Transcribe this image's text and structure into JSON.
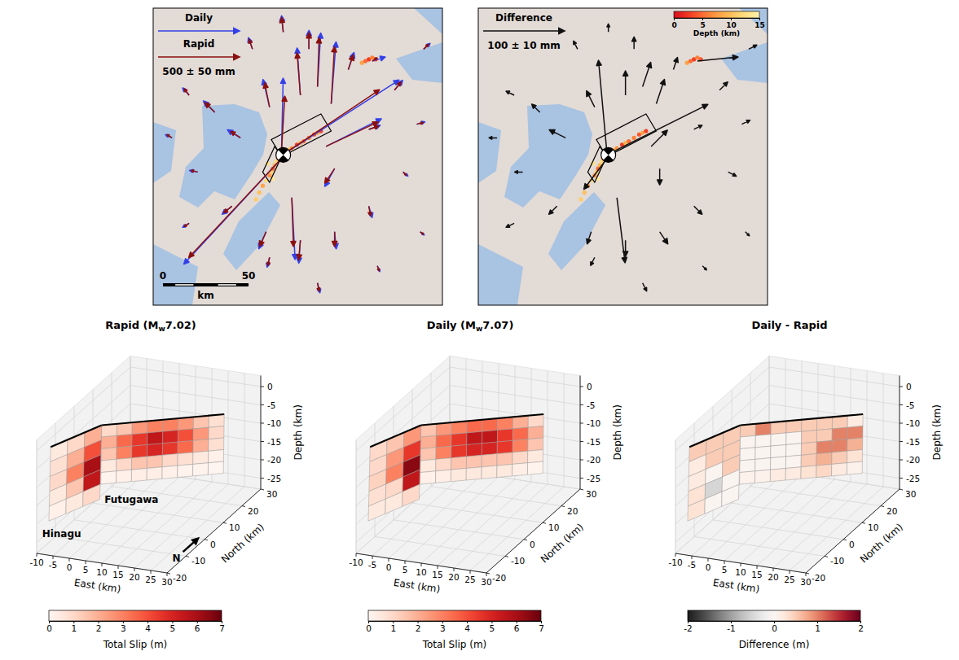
{
  "chart_data": [
    {
      "type": "vector_map",
      "xlim": [
        -76,
        93
      ],
      "ylim": [
        -88,
        86
      ],
      "stations": {
        "x": [
          1,
          0,
          -1,
          5,
          28,
          20,
          10,
          -8,
          25,
          30,
          -25,
          -40,
          -55,
          -18,
          0,
          15,
          38,
          65,
          50,
          78,
          70,
          50,
          30,
          10,
          -10,
          -30,
          -50,
          -65,
          -55,
          -8,
          20,
          55,
          80,
          82,
          52
        ],
        "y": [
          1,
          -1,
          3,
          -25,
          30,
          40,
          35,
          28,
          5,
          -8,
          10,
          25,
          35,
          62,
          72,
          62,
          50,
          38,
          15,
          18,
          -10,
          -30,
          -45,
          -50,
          -45,
          -30,
          -10,
          10,
          -40,
          -60,
          -75,
          -65,
          -45,
          62,
          55
        ]
      },
      "series": [
        {
          "name": "Daily",
          "color": "#3340e8",
          "east": [
            700,
            -610,
            10,
            20,
            30,
            20,
            -20,
            -40,
            340,
            -60,
            -80,
            -70,
            -40,
            -25,
            -10,
            0,
            35,
            50,
            70,
            50,
            30,
            20,
            10,
            -10,
            -45,
            -60,
            -50,
            -40,
            -40,
            -15,
            15,
            15,
            25,
            40,
            80
          ],
          "north": [
            450,
            -660,
            440,
            -380,
            380,
            330,
            290,
            170,
            170,
            -110,
            50,
            70,
            45,
            70,
            100,
            115,
            105,
            60,
            25,
            15,
            -25,
            -70,
            -105,
            -140,
            -105,
            -50,
            10,
            20,
            -25,
            -60,
            -60,
            -35,
            -20,
            35,
            25
          ]
        },
        {
          "name": "Rapid",
          "color": "#8b1010",
          "east": [
            580,
            -580,
            20,
            10,
            20,
            10,
            -20,
            -30,
            320,
            -60,
            -60,
            -60,
            -30,
            -20,
            -10,
            0,
            30,
            40,
            60,
            40,
            20,
            10,
            0,
            -10,
            -40,
            -50,
            -40,
            -30,
            -30,
            -10,
            10,
            10,
            20,
            30,
            30
          ],
          "north": [
            390,
            -620,
            330,
            -300,
            350,
            300,
            260,
            150,
            150,
            -90,
            40,
            60,
            40,
            60,
            90,
            100,
            90,
            50,
            20,
            10,
            -20,
            -60,
            -90,
            -120,
            -90,
            -40,
            10,
            20,
            -20,
            -50,
            -50,
            -30,
            -15,
            30,
            20
          ]
        }
      ],
      "reference_arrow": {
        "value": 500,
        "label": "500 ± 50 mm"
      },
      "scale_bar": {
        "ticks": [
          0,
          50
        ],
        "unit": "km"
      },
      "aftershocks": {
        "x": [
          -16,
          -14,
          -12,
          -10,
          -9,
          -8,
          -7,
          -6,
          -6,
          -5,
          -4,
          -3,
          -2,
          -1,
          1,
          3,
          5,
          8,
          10,
          12,
          15,
          18,
          20,
          22,
          46,
          48,
          50,
          52,
          54
        ],
        "y": [
          -26,
          -22,
          -18,
          -15,
          -5,
          -12,
          -10,
          -14,
          -8,
          -6,
          -4,
          -2,
          -1,
          1,
          2,
          3,
          4,
          6,
          7,
          8,
          10,
          12,
          13,
          14,
          54,
          55,
          56,
          57,
          56
        ],
        "depth": [
          11,
          10,
          8,
          12,
          13,
          7,
          11,
          14,
          5,
          9,
          12,
          6,
          10,
          8,
          4,
          10,
          7,
          3,
          9,
          5,
          6,
          4,
          8,
          3,
          8,
          5,
          3,
          6,
          4
        ]
      }
    },
    {
      "type": "vector_map",
      "series": [
        {
          "name": "Difference",
          "color": "#111111",
          "east": [
            120,
            -30,
            -10,
            10,
            10,
            10,
            0,
            -10,
            20,
            0,
            -20,
            -10,
            -10,
            -5,
            0,
            0,
            5,
            10,
            10,
            10,
            10,
            10,
            10,
            0,
            -5,
            -10,
            -10,
            -10,
            -10,
            -5,
            5,
            5,
            5,
            10,
            50
          ],
          "north": [
            60,
            -40,
            110,
            -80,
            30,
            30,
            30,
            20,
            20,
            -20,
            10,
            10,
            5,
            10,
            10,
            15,
            15,
            10,
            5,
            5,
            -5,
            -10,
            -15,
            -20,
            -15,
            -10,
            0,
            0,
            -5,
            -10,
            -10,
            -5,
            -5,
            5,
            5
          ]
        }
      ],
      "reference_arrow": {
        "value": 100,
        "label": "100 ± 10 mm"
      },
      "colorbar": {
        "label": "Depth (km)",
        "range": [
          0,
          15
        ],
        "ticks": [
          0,
          5,
          10,
          15
        ]
      }
    },
    {
      "type": "fault_slip_3d",
      "title": "Rapid (Mw7.02)",
      "xlabel": "East (km)",
      "ylabel": "North (km)",
      "zlabel": "Depth (km)",
      "xlim": [
        -10,
        30
      ],
      "ylim": [
        -20,
        30
      ],
      "zlim": [
        -28,
        3
      ],
      "xticks": [
        -10,
        -5,
        0,
        5,
        10,
        15,
        20,
        25,
        30
      ],
      "yticks": [
        -20,
        -10,
        0,
        10,
        20,
        30
      ],
      "zticks": [
        0,
        -5,
        -10,
        -15,
        -20,
        -25
      ],
      "grid": true,
      "north_label": "N",
      "faults": [
        {
          "name": "Hinagu",
          "corners": [
            [
              -8,
              -16,
              -0.5
            ],
            [
              -1,
              -1,
              -0.5
            ],
            [
              -5,
              5,
              -24
            ],
            [
              -12,
              -10,
              -24
            ]
          ],
          "slip": [
            [
              0.5,
              1.0,
              2.0
            ],
            [
              0.8,
              2.0,
              4.0
            ],
            [
              1.0,
              3.0,
              6.0
            ],
            [
              0.5,
              1.5,
              5.5
            ],
            [
              0.2,
              0.5,
              1.0
            ]
          ]
        },
        {
          "name": "Futugawa",
          "corners": [
            [
              -1,
              -1,
              -0.5
            ],
            [
              28,
              14,
              -0.5
            ],
            [
              22,
              24,
              -22
            ],
            [
              -7,
              9,
              -22
            ]
          ],
          "slip": [
            [
              1.0,
              1.5,
              2.5,
              3.0,
              3.0,
              2.5,
              1.5,
              0.8
            ],
            [
              2.0,
              3.5,
              4.5,
              5.5,
              5.0,
              4.0,
              2.5,
              1.0
            ],
            [
              1.5,
              3.0,
              4.5,
              5.0,
              4.5,
              3.5,
              2.0,
              0.8
            ],
            [
              0.5,
              1.0,
              1.5,
              1.5,
              1.0,
              0.8,
              0.5,
              0.2
            ],
            [
              0.1,
              0.2,
              0.3,
              0.3,
              0.2,
              0.1,
              0.1,
              0.0
            ]
          ]
        }
      ],
      "colorbar": {
        "label": "Total Slip (m)",
        "color": "Reds",
        "range": [
          0,
          7
        ],
        "ticks": [
          0,
          1,
          2,
          3,
          4,
          5,
          6,
          7
        ]
      }
    },
    {
      "type": "fault_slip_3d",
      "title": "Daily (Mw7.07)",
      "xlabel": "East (km)",
      "ylabel": "North (km)",
      "zlabel": "Depth (km)",
      "xlim": [
        -10,
        30
      ],
      "ylim": [
        -20,
        30
      ],
      "zlim": [
        -28,
        3
      ],
      "xticks": [
        -10,
        -5,
        0,
        5,
        10,
        15,
        20,
        25,
        30
      ],
      "yticks": [
        -20,
        -10,
        0,
        10,
        20,
        30
      ],
      "zticks": [
        0,
        -5,
        -10,
        -15,
        -20,
        -25
      ],
      "grid": true,
      "faults": [
        {
          "corners": [
            [
              -8,
              -16,
              -0.5
            ],
            [
              -1,
              -1,
              -0.5
            ],
            [
              -5,
              5,
              -24
            ],
            [
              -12,
              -10,
              -24
            ]
          ],
          "slip": [
            [
              1.0,
              1.5,
              2.5
            ],
            [
              1.0,
              2.5,
              4.5
            ],
            [
              1.2,
              3.0,
              6.5
            ],
            [
              0.8,
              1.0,
              5.5
            ],
            [
              0.5,
              0.5,
              1.0
            ]
          ]
        },
        {
          "corners": [
            [
              -1,
              -1,
              -0.5
            ],
            [
              28,
              14,
              -0.5
            ],
            [
              22,
              24,
              -22
            ],
            [
              -7,
              9,
              -22
            ]
          ],
          "slip": [
            [
              1.5,
              2.5,
              3.0,
              3.5,
              3.5,
              3.0,
              2.0,
              1.0
            ],
            [
              2.0,
              3.5,
              4.5,
              5.5,
              5.5,
              4.5,
              3.5,
              2.0
            ],
            [
              1.5,
              3.0,
              4.5,
              5.0,
              5.0,
              4.5,
              3.0,
              1.5
            ],
            [
              0.5,
              1.0,
              1.5,
              1.5,
              1.5,
              1.5,
              1.0,
              0.5
            ],
            [
              0.2,
              0.3,
              0.5,
              0.5,
              0.5,
              0.5,
              0.3,
              0.1
            ]
          ]
        }
      ],
      "colorbar": {
        "label": "Total Slip (m)",
        "color": "Reds",
        "range": [
          0,
          7
        ],
        "ticks": [
          0,
          1,
          2,
          3,
          4,
          5,
          6,
          7
        ]
      }
    },
    {
      "type": "fault_slip_3d",
      "title": "Daily - Rapid",
      "xlabel": "East (km)",
      "ylabel": "North (km)",
      "zlabel": "Depth (km)",
      "xlim": [
        -10,
        30
      ],
      "ylim": [
        -20,
        30
      ],
      "zlim": [
        -28,
        3
      ],
      "xticks": [
        -10,
        -5,
        0,
        5,
        10,
        15,
        20,
        25,
        30
      ],
      "yticks": [
        -20,
        -10,
        0,
        10,
        20,
        30
      ],
      "zticks": [
        0,
        -5,
        -10,
        -15,
        -20,
        -25
      ],
      "grid": true,
      "faults": [
        {
          "corners": [
            [
              -8,
              -16,
              -0.5
            ],
            [
              -1,
              -1,
              -0.5
            ],
            [
              -5,
              5,
              -24
            ],
            [
              -12,
              -10,
              -24
            ]
          ],
          "slip": [
            [
              0.5,
              0.5,
              0.5
            ],
            [
              0.2,
              0.5,
              0.5
            ],
            [
              0.2,
              0.0,
              0.5
            ],
            [
              0.3,
              -0.5,
              0.0
            ],
            [
              0.3,
              0.0,
              0.0
            ]
          ]
        },
        {
          "corners": [
            [
              -1,
              -1,
              -0.5
            ],
            [
              28,
              14,
              -0.5
            ],
            [
              22,
              24,
              -22
            ],
            [
              -7,
              9,
              -22
            ]
          ],
          "slip": [
            [
              0.5,
              1.0,
              0.5,
              0.5,
              0.5,
              0.5,
              0.5,
              0.2
            ],
            [
              0.0,
              0.0,
              0.0,
              0.0,
              0.5,
              0.5,
              1.0,
              1.0
            ],
            [
              0.0,
              0.0,
              0.0,
              0.0,
              0.5,
              1.0,
              1.0,
              0.7
            ],
            [
              0.0,
              0.0,
              0.0,
              0.0,
              0.5,
              0.7,
              0.5,
              0.3
            ],
            [
              0.1,
              0.1,
              0.2,
              0.2,
              0.3,
              0.4,
              0.2,
              0.1
            ]
          ]
        }
      ],
      "colorbar": {
        "label": "Difference (m)",
        "color": "RdGy",
        "range": [
          -2,
          2
        ],
        "ticks": [
          -2,
          -1,
          0,
          1,
          2
        ]
      }
    }
  ]
}
